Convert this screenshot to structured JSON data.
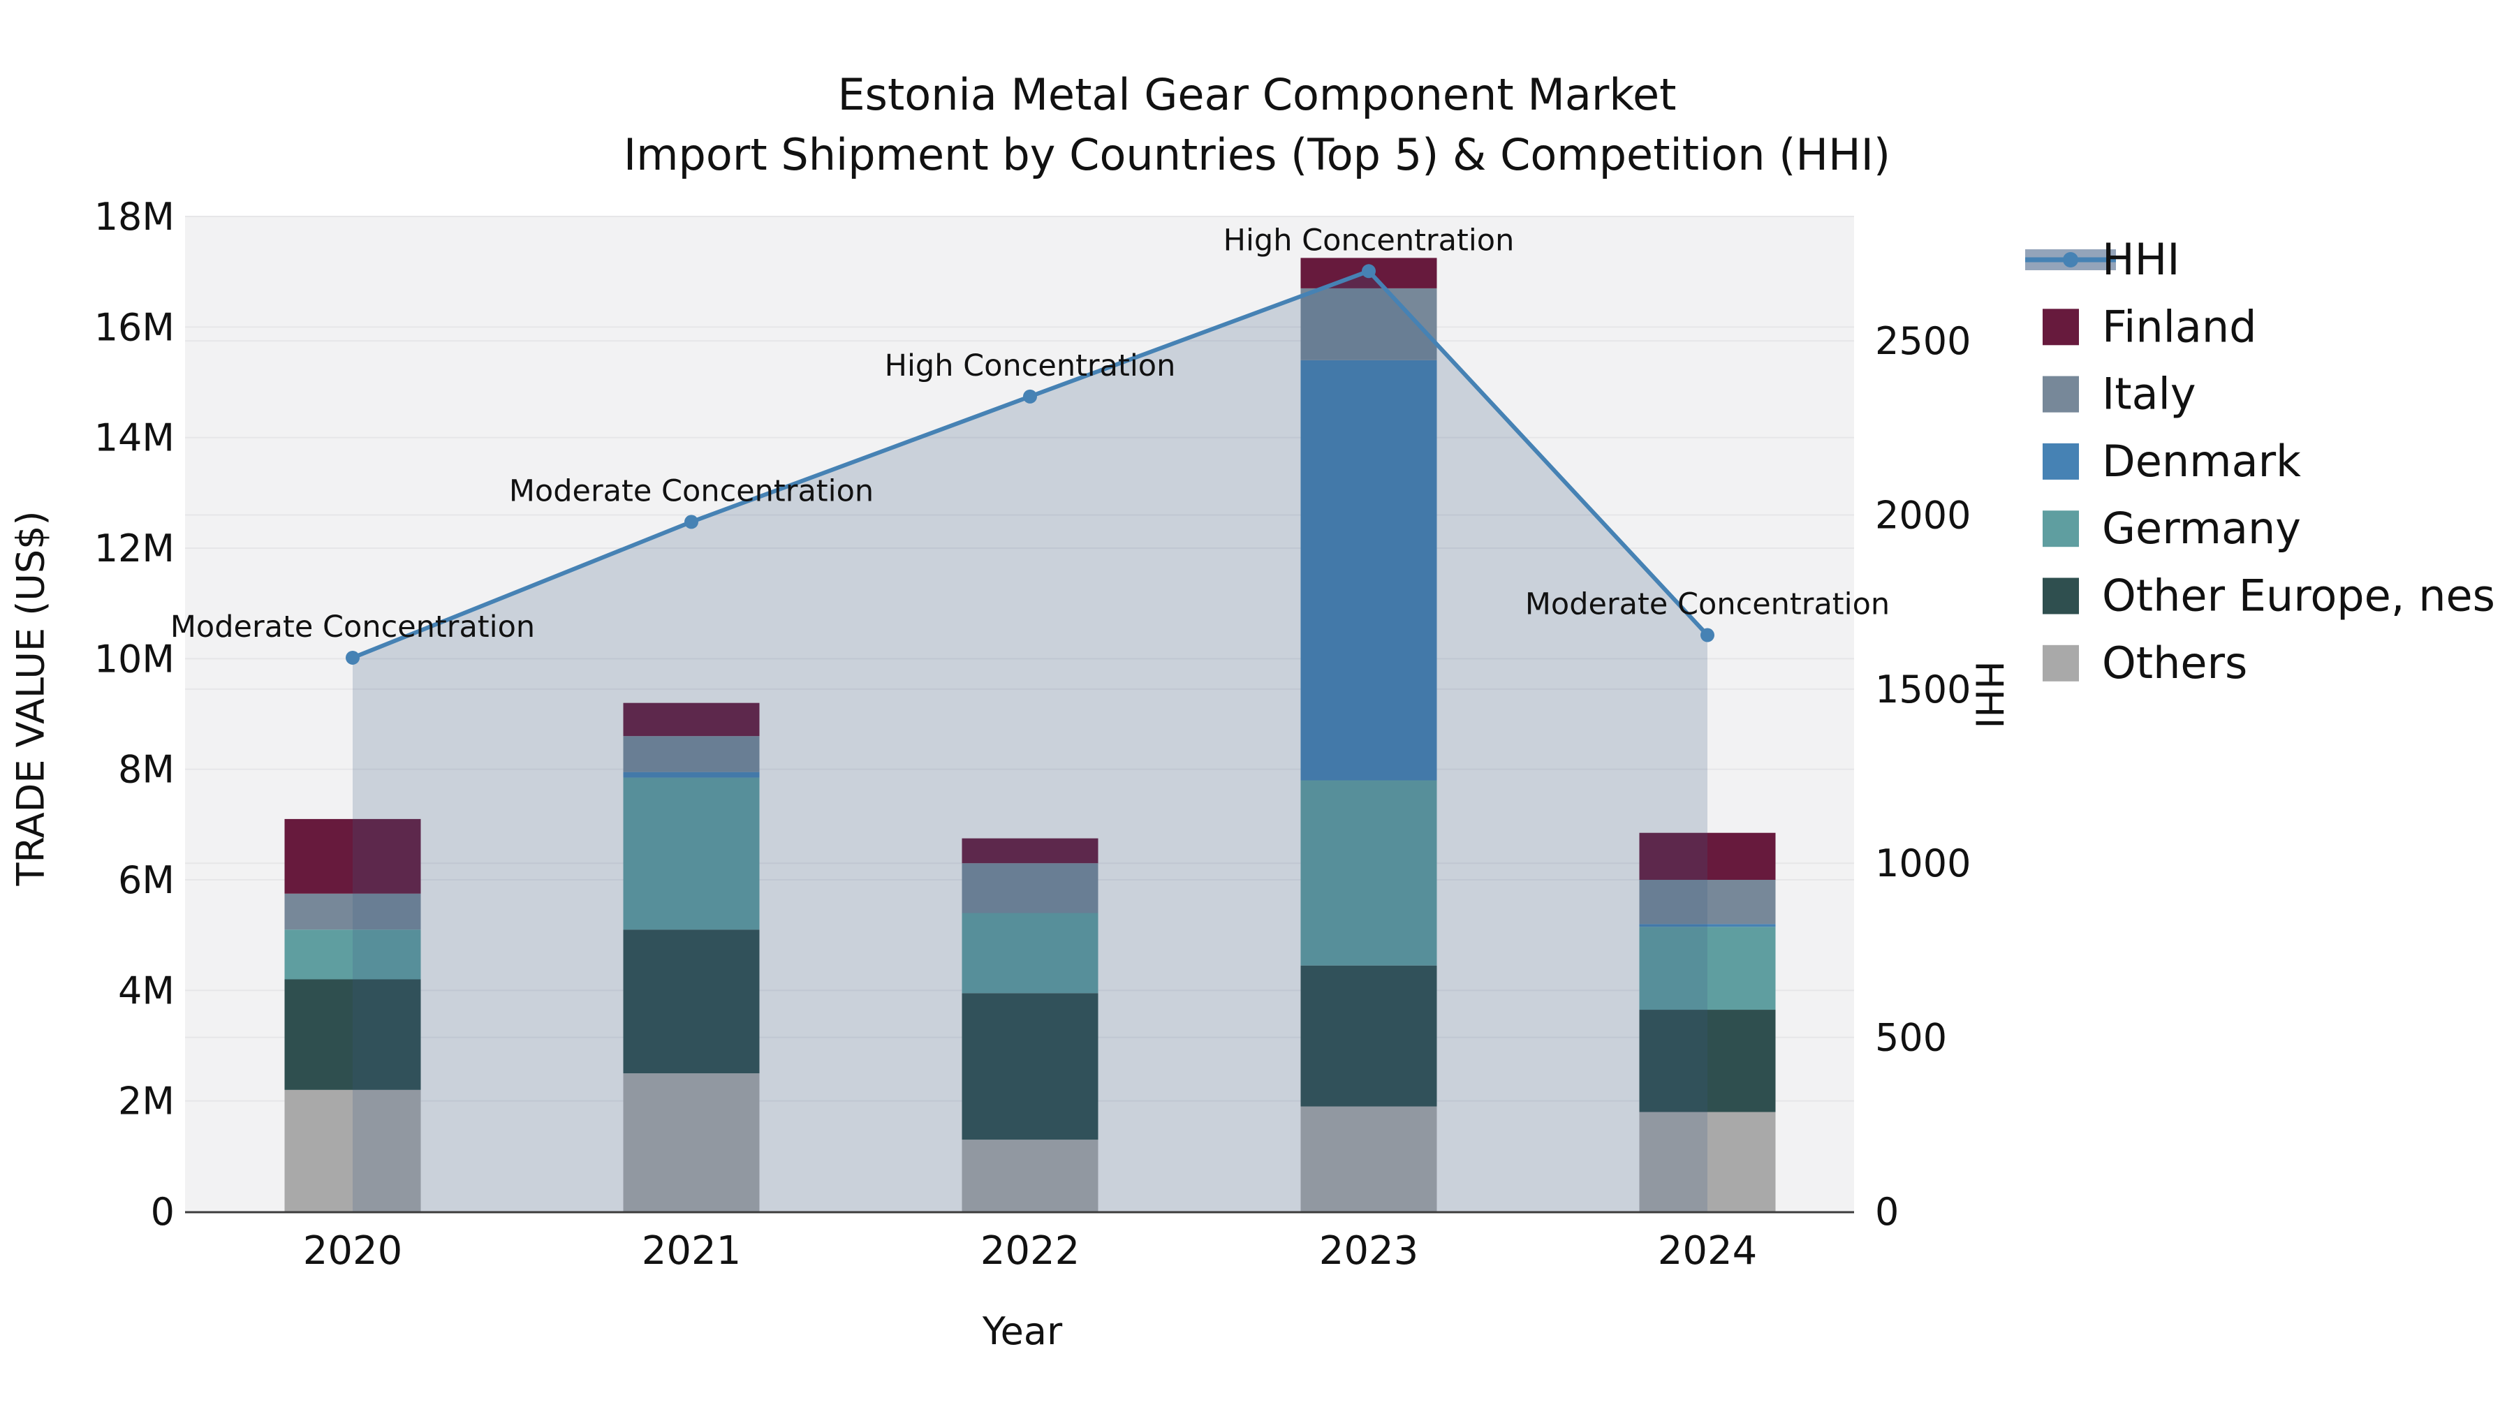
{
  "title": {
    "line1": "Estonia Metal Gear Component Market",
    "line2": "Import Shipment by Countries (Top 5) & Competition (HHI)"
  },
  "axes": {
    "left": {
      "label": "TRADE VALUE (US$)",
      "tick_labels": [
        "0",
        "2M",
        "4M",
        "6M",
        "8M",
        "10M",
        "12M",
        "14M",
        "16M",
        "18M"
      ],
      "tick_values_millions": [
        0,
        2,
        4,
        6,
        8,
        10,
        12,
        14,
        16,
        18
      ],
      "range_millions": [
        0,
        18
      ]
    },
    "right": {
      "label": "HHI",
      "tick_labels": [
        "0",
        "500",
        "1000",
        "1500",
        "2000",
        "2500"
      ],
      "tick_values": [
        0,
        500,
        1000,
        1500,
        2000,
        2500
      ],
      "range": [
        0,
        2857
      ]
    },
    "x": {
      "label": "Year",
      "tick_labels": [
        "2020",
        "2021",
        "2022",
        "2023",
        "2024"
      ]
    }
  },
  "legend": [
    {
      "label": "HHI",
      "type": "line",
      "color": "#4682b4"
    },
    {
      "label": "Finland",
      "type": "swatch",
      "color": "#671a3d"
    },
    {
      "label": "Italy",
      "type": "swatch",
      "color": "#778899"
    },
    {
      "label": "Denmark",
      "type": "swatch",
      "color": "#4682b4"
    },
    {
      "label": "Germany",
      "type": "swatch",
      "color": "#5f9ea0"
    },
    {
      "label": "Other Europe, nes",
      "type": "swatch",
      "color": "#2f4f4f"
    },
    {
      "label": "Others",
      "type": "swatch",
      "color": "#a9a9a9"
    }
  ],
  "chart_data": {
    "type": "bar",
    "subtype": "stacked-bars-with-line-overlay",
    "title": "Estonia Metal Gear Component Market — Import Shipment by Countries (Top 5) & Competition (HHI)",
    "xlabel": "Year",
    "ylabel_left": "TRADE VALUE (US$)",
    "ylabel_right": "HHI",
    "categories": [
      "2020",
      "2021",
      "2022",
      "2023",
      "2024"
    ],
    "ylim_left_millions": [
      0,
      18
    ],
    "ylim_right_hhi": [
      0,
      2857
    ],
    "grid": true,
    "legend_position": "right-outside",
    "series": [
      {
        "name": "Others",
        "color": "#a9a9a9",
        "values_millions": [
          2.2,
          2.5,
          1.3,
          1.9,
          1.8
        ]
      },
      {
        "name": "Other Europe, nes",
        "color": "#2f4f4f",
        "values_millions": [
          2.0,
          2.6,
          2.65,
          2.55,
          1.85
        ]
      },
      {
        "name": "Germany",
        "color": "#5f9ea0",
        "values_millions": [
          0.9,
          2.75,
          1.45,
          3.35,
          1.5
        ]
      },
      {
        "name": "Denmark",
        "color": "#4682b4",
        "values_millions": [
          0.0,
          0.1,
          0.0,
          7.6,
          0.05
        ]
      },
      {
        "name": "Italy",
        "color": "#778899",
        "values_millions": [
          0.65,
          0.65,
          0.9,
          1.3,
          0.8
        ]
      },
      {
        "name": "Finland",
        "color": "#671a3d",
        "values_millions": [
          1.35,
          0.6,
          0.45,
          0.55,
          0.85
        ]
      }
    ],
    "bar_totals_millions": [
      7.1,
      9.2,
      6.75,
      17.25,
      6.85
    ],
    "line_series": {
      "name": "HHI",
      "color": "#4682b4",
      "area_fill": "rgba(60,90,130,0.22)",
      "values": [
        1590,
        1980,
        2340,
        2700,
        1655
      ]
    },
    "annotations": [
      {
        "category": "2020",
        "text": "Moderate Concentration"
      },
      {
        "category": "2021",
        "text": "Moderate Concentration"
      },
      {
        "category": "2022",
        "text": "High Concentration"
      },
      {
        "category": "2023",
        "text": "High Concentration"
      },
      {
        "category": "2024",
        "text": "Moderate Concentration"
      }
    ],
    "colors": {
      "plot_background": "#f2f2f3",
      "figure_background": "#ffffff",
      "gridline": "#e6e6e8",
      "axis_spine": "#3c3c3c",
      "hhi_line": "#4682b4"
    }
  }
}
